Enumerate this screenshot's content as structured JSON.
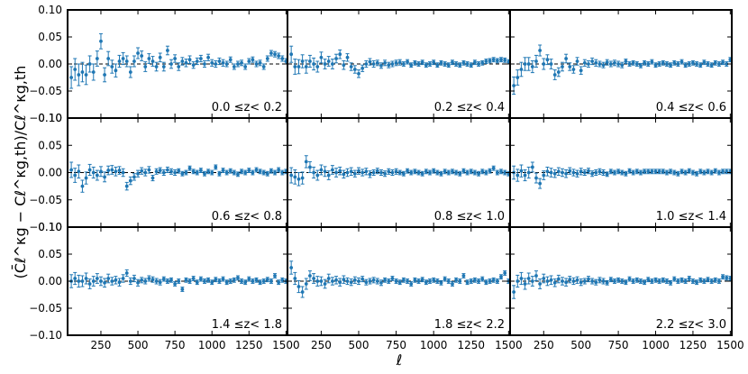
{
  "chart_data": {
    "type": "scatter",
    "xlabel": "ℓ",
    "ylabel": "(C̄ℓ^κg − Cℓ^κg,th)/Cℓ^κg,th",
    "xlim": [
      25,
      1510
    ],
    "ylim": [
      -0.1,
      0.1
    ],
    "x_ticks": [
      "250",
      "500",
      "750",
      "1000",
      "1250",
      "1500"
    ],
    "y_ticks": [
      "−0.10",
      "−0.05",
      "0.00",
      "0.05",
      "0.10"
    ],
    "reference_line": 0.0,
    "marker_color": "#1f77b4",
    "grid": false,
    "x": [
      50,
      75,
      100,
      125,
      150,
      175,
      200,
      225,
      250,
      275,
      300,
      325,
      350,
      375,
      400,
      425,
      450,
      475,
      500,
      525,
      550,
      575,
      600,
      625,
      650,
      675,
      700,
      725,
      750,
      775,
      800,
      825,
      850,
      875,
      900,
      925,
      950,
      975,
      1000,
      1025,
      1050,
      1075,
      1100,
      1125,
      1150,
      1175,
      1200,
      1225,
      1250,
      1275,
      1300,
      1325,
      1350,
      1375,
      1400,
      1425,
      1450,
      1475,
      1500
    ],
    "panels": [
      {
        "label": "0.0  ≤z<  0.2",
        "values": [
          -0.025,
          -0.01,
          -0.02,
          -0.015,
          -0.02,
          0.0,
          -0.015,
          0.01,
          0.042,
          -0.02,
          0.01,
          -0.005,
          -0.012,
          0.005,
          0.01,
          0.005,
          -0.015,
          0.005,
          0.02,
          0.015,
          -0.005,
          0.01,
          0.005,
          -0.005,
          0.012,
          -0.005,
          0.025,
          0.0,
          0.01,
          -0.005,
          0.005,
          0.002,
          0.008,
          -0.002,
          0.005,
          0.01,
          0.0,
          0.012,
          0.002,
          0.0,
          0.005,
          0.002,
          0.0,
          0.008,
          -0.005,
          0.0,
          0.002,
          -0.005,
          0.005,
          0.008,
          0.0,
          0.002,
          -0.005,
          0.01,
          0.02,
          0.018,
          0.015,
          0.01,
          0.005
        ],
        "errors": [
          0.02,
          0.02,
          0.02,
          0.018,
          0.018,
          0.015,
          0.015,
          0.014,
          0.014,
          0.013,
          0.013,
          0.012,
          0.012,
          0.011,
          0.011,
          0.01,
          0.01,
          0.01,
          0.01,
          0.009,
          0.009,
          0.009,
          0.009,
          0.008,
          0.008,
          0.008,
          0.008,
          0.008,
          0.007,
          0.007,
          0.007,
          0.007,
          0.007,
          0.006,
          0.006,
          0.006,
          0.006,
          0.006,
          0.006,
          0.006,
          0.006,
          0.006,
          0.005,
          0.005,
          0.005,
          0.005,
          0.005,
          0.005,
          0.005,
          0.005,
          0.005,
          0.005,
          0.005,
          0.005,
          0.005,
          0.005,
          0.005,
          0.005,
          0.005
        ]
      },
      {
        "label": "0.2  ≤z<  0.4",
        "values": [
          0.018,
          -0.005,
          -0.005,
          0.005,
          -0.005,
          0.005,
          0.0,
          -0.005,
          0.012,
          0.0,
          0.005,
          0.0,
          0.01,
          0.018,
          -0.002,
          0.012,
          -0.005,
          -0.01,
          -0.018,
          -0.008,
          0.0,
          0.004,
          0.0,
          0.002,
          -0.003,
          0.002,
          -0.002,
          0.0,
          0.002,
          0.003,
          0.0,
          0.004,
          -0.002,
          0.002,
          0.0,
          0.003,
          -0.002,
          0.0,
          0.003,
          -0.002,
          0.002,
          0.0,
          -0.002,
          0.003,
          0.0,
          -0.002,
          0.002,
          0.0,
          -0.002,
          0.003,
          0.0,
          0.002,
          0.005,
          0.006,
          0.008,
          0.006,
          0.008,
          0.007,
          0.004
        ],
        "errors": [
          0.015,
          0.014,
          0.013,
          0.012,
          0.012,
          0.011,
          0.011,
          0.01,
          0.01,
          0.009,
          0.009,
          0.009,
          0.008,
          0.008,
          0.008,
          0.007,
          0.007,
          0.007,
          0.007,
          0.006,
          0.006,
          0.006,
          0.006,
          0.005,
          0.005,
          0.005,
          0.005,
          0.005,
          0.005,
          0.005,
          0.004,
          0.004,
          0.004,
          0.004,
          0.004,
          0.004,
          0.004,
          0.004,
          0.004,
          0.004,
          0.004,
          0.004,
          0.004,
          0.004,
          0.004,
          0.004,
          0.004,
          0.004,
          0.004,
          0.004,
          0.004,
          0.004,
          0.004,
          0.004,
          0.004,
          0.004,
          0.004,
          0.004,
          0.004
        ]
      },
      {
        "label": "0.4  ≤z<  0.6",
        "values": [
          -0.04,
          -0.025,
          -0.01,
          0.0,
          0.0,
          -0.005,
          0.005,
          0.025,
          0.0,
          0.008,
          0.0,
          -0.02,
          -0.015,
          -0.005,
          0.01,
          -0.005,
          -0.01,
          0.005,
          -0.012,
          0.002,
          0.0,
          0.005,
          0.002,
          0.0,
          -0.002,
          0.003,
          0.0,
          0.002,
          0.0,
          -0.002,
          0.005,
          0.0,
          0.002,
          0.0,
          -0.003,
          0.002,
          0.0,
          0.004,
          -0.002,
          0.0,
          0.002,
          0.0,
          -0.002,
          0.002,
          0.0,
          0.004,
          -0.002,
          0.0,
          0.002,
          0.0,
          -0.002,
          0.003,
          0.0,
          -0.002,
          0.002,
          0.0,
          0.003,
          0.0,
          0.008
        ],
        "errors": [
          0.016,
          0.014,
          0.013,
          0.012,
          0.012,
          0.011,
          0.011,
          0.01,
          0.01,
          0.009,
          0.009,
          0.009,
          0.008,
          0.008,
          0.008,
          0.007,
          0.007,
          0.007,
          0.007,
          0.006,
          0.006,
          0.006,
          0.006,
          0.005,
          0.005,
          0.005,
          0.005,
          0.005,
          0.005,
          0.005,
          0.004,
          0.004,
          0.004,
          0.004,
          0.004,
          0.004,
          0.004,
          0.004,
          0.004,
          0.004,
          0.004,
          0.004,
          0.004,
          0.004,
          0.004,
          0.004,
          0.004,
          0.004,
          0.004,
          0.004,
          0.004,
          0.004,
          0.004,
          0.004,
          0.004,
          0.004,
          0.004,
          0.004,
          0.004
        ]
      },
      {
        "label": "0.6  ≤z<  0.8",
        "values": [
          0.005,
          -0.005,
          0.002,
          -0.025,
          -0.01,
          0.005,
          0.0,
          -0.005,
          0.002,
          -0.008,
          0.004,
          0.005,
          0.002,
          0.004,
          0.0,
          -0.025,
          -0.015,
          -0.008,
          -0.002,
          0.003,
          0.0,
          0.005,
          -0.01,
          0.002,
          0.004,
          0.0,
          0.005,
          0.002,
          0.0,
          0.003,
          -0.002,
          0.0,
          0.008,
          0.002,
          0.0,
          0.004,
          -0.002,
          0.002,
          0.0,
          0.01,
          -0.002,
          0.004,
          0.0,
          0.003,
          0.0,
          -0.003,
          0.002,
          0.0,
          0.004,
          0.0,
          0.005,
          0.002,
          0.0,
          -0.002,
          0.003,
          0.0,
          0.005,
          0.0,
          0.002
        ],
        "errors": [
          0.014,
          0.013,
          0.012,
          0.011,
          0.011,
          0.01,
          0.01,
          0.009,
          0.009,
          0.009,
          0.008,
          0.008,
          0.008,
          0.007,
          0.007,
          0.007,
          0.007,
          0.006,
          0.006,
          0.006,
          0.006,
          0.006,
          0.005,
          0.005,
          0.005,
          0.005,
          0.005,
          0.005,
          0.005,
          0.004,
          0.004,
          0.004,
          0.004,
          0.004,
          0.004,
          0.004,
          0.004,
          0.004,
          0.004,
          0.004,
          0.004,
          0.004,
          0.004,
          0.004,
          0.004,
          0.004,
          0.004,
          0.004,
          0.004,
          0.004,
          0.004,
          0.004,
          0.004,
          0.004,
          0.004,
          0.004,
          0.004,
          0.004,
          0.004
        ]
      },
      {
        "label": "0.8  ≤z<  1.0",
        "values": [
          -0.005,
          -0.008,
          -0.012,
          -0.01,
          0.02,
          0.01,
          0.0,
          -0.005,
          0.005,
          0.002,
          -0.005,
          0.005,
          0.0,
          0.003,
          -0.003,
          0.0,
          0.002,
          -0.002,
          0.003,
          0.0,
          0.002,
          -0.003,
          0.0,
          0.003,
          0.0,
          -0.002,
          0.002,
          0.0,
          0.002,
          0.0,
          -0.002,
          0.003,
          0.0,
          0.002,
          0.0,
          -0.002,
          0.002,
          0.0,
          0.003,
          0.0,
          -0.002,
          0.002,
          0.0,
          0.002,
          0.0,
          -0.002,
          0.003,
          0.0,
          0.002,
          0.0,
          -0.002,
          0.002,
          0.0,
          0.003,
          0.008,
          0.0,
          0.002,
          0.0,
          -0.002
        ],
        "errors": [
          0.014,
          0.013,
          0.012,
          0.011,
          0.011,
          0.01,
          0.01,
          0.009,
          0.009,
          0.009,
          0.008,
          0.008,
          0.008,
          0.007,
          0.007,
          0.007,
          0.007,
          0.006,
          0.006,
          0.006,
          0.006,
          0.006,
          0.005,
          0.005,
          0.005,
          0.005,
          0.005,
          0.005,
          0.005,
          0.004,
          0.004,
          0.004,
          0.004,
          0.004,
          0.004,
          0.004,
          0.004,
          0.004,
          0.004,
          0.004,
          0.004,
          0.004,
          0.004,
          0.004,
          0.004,
          0.004,
          0.004,
          0.004,
          0.004,
          0.004,
          0.004,
          0.004,
          0.004,
          0.004,
          0.004,
          0.004,
          0.004,
          0.004,
          0.004
        ]
      },
      {
        "label": "1.0  ≤z<  1.4",
        "values": [
          0.0,
          -0.005,
          0.003,
          -0.005,
          0.0,
          0.01,
          -0.01,
          -0.02,
          -0.005,
          0.002,
          0.0,
          -0.002,
          0.002,
          0.0,
          -0.002,
          0.003,
          0.0,
          -0.002,
          0.002,
          0.0,
          0.003,
          -0.002,
          0.0,
          0.002,
          0.0,
          -0.003,
          0.002,
          0.0,
          0.002,
          0.0,
          -0.002,
          0.003,
          0.0,
          0.002,
          0.0,
          0.002,
          0.002,
          0.002,
          0.002,
          0.002,
          0.002,
          0.0,
          0.002,
          0.0,
          -0.002,
          0.002,
          0.0,
          0.003,
          0.0,
          -0.002,
          0.002,
          0.0,
          0.002,
          0.0,
          0.003,
          0.0,
          0.002,
          0.002,
          0.002
        ],
        "errors": [
          0.012,
          0.011,
          0.011,
          0.01,
          0.01,
          0.009,
          0.009,
          0.009,
          0.008,
          0.008,
          0.008,
          0.007,
          0.007,
          0.007,
          0.007,
          0.006,
          0.006,
          0.006,
          0.006,
          0.005,
          0.005,
          0.005,
          0.005,
          0.005,
          0.005,
          0.004,
          0.004,
          0.004,
          0.004,
          0.004,
          0.004,
          0.004,
          0.004,
          0.004,
          0.004,
          0.004,
          0.004,
          0.004,
          0.004,
          0.004,
          0.004,
          0.004,
          0.004,
          0.004,
          0.004,
          0.004,
          0.004,
          0.004,
          0.004,
          0.004,
          0.004,
          0.004,
          0.004,
          0.004,
          0.004,
          0.004,
          0.004,
          0.004,
          0.004
        ]
      },
      {
        "label": "1.4  ≤z<  1.8",
        "values": [
          0.0,
          0.005,
          0.0,
          0.0,
          0.005,
          -0.005,
          0.0,
          0.005,
          0.0,
          -0.003,
          0.005,
          0.0,
          0.002,
          -0.002,
          0.005,
          0.015,
          0.0,
          0.005,
          -0.003,
          0.002,
          0.0,
          0.005,
          0.003,
          0.0,
          -0.002,
          0.004,
          0.0,
          0.002,
          -0.005,
          0.0,
          -0.015,
          0.002,
          0.0,
          0.005,
          -0.002,
          0.004,
          0.0,
          0.002,
          -0.002,
          0.003,
          0.0,
          0.004,
          -0.002,
          0.0,
          0.002,
          0.006,
          0.0,
          -0.002,
          0.004,
          0.0,
          0.002,
          -0.002,
          0.0,
          0.003,
          0.0,
          0.01,
          -0.002,
          0.002,
          0.0
        ],
        "errors": [
          0.012,
          0.011,
          0.011,
          0.01,
          0.01,
          0.009,
          0.009,
          0.009,
          0.008,
          0.008,
          0.008,
          0.007,
          0.007,
          0.007,
          0.007,
          0.006,
          0.006,
          0.006,
          0.006,
          0.005,
          0.005,
          0.005,
          0.005,
          0.005,
          0.005,
          0.004,
          0.004,
          0.004,
          0.004,
          0.004,
          0.004,
          0.004,
          0.004,
          0.004,
          0.004,
          0.004,
          0.004,
          0.004,
          0.004,
          0.004,
          0.004,
          0.004,
          0.004,
          0.004,
          0.004,
          0.004,
          0.004,
          0.004,
          0.004,
          0.004,
          0.004,
          0.004,
          0.004,
          0.004,
          0.004,
          0.004,
          0.004,
          0.004,
          0.004
        ]
      },
      {
        "label": "1.8  ≤z<  2.2",
        "values": [
          0.025,
          0.005,
          -0.01,
          -0.02,
          -0.005,
          0.01,
          0.005,
          0.0,
          0.0,
          -0.005,
          0.005,
          0.0,
          0.002,
          -0.002,
          0.003,
          0.0,
          -0.002,
          0.002,
          0.0,
          0.004,
          -0.002,
          0.0,
          0.002,
          0.0,
          -0.003,
          0.002,
          0.0,
          0.005,
          0.0,
          -0.002,
          0.002,
          0.0,
          -0.005,
          0.002,
          0.0,
          0.003,
          -0.002,
          0.0,
          0.002,
          0.0,
          -0.003,
          0.004,
          0.0,
          -0.005,
          0.002,
          0.0,
          0.01,
          -0.002,
          0.0,
          0.002,
          0.0,
          0.004,
          -0.002,
          0.0,
          0.002,
          0.0,
          0.008,
          0.015,
          0.0
        ],
        "errors": [
          0.012,
          0.011,
          0.011,
          0.01,
          0.01,
          0.009,
          0.009,
          0.009,
          0.008,
          0.008,
          0.008,
          0.007,
          0.007,
          0.007,
          0.007,
          0.006,
          0.006,
          0.006,
          0.006,
          0.005,
          0.005,
          0.005,
          0.005,
          0.005,
          0.005,
          0.004,
          0.004,
          0.004,
          0.004,
          0.004,
          0.004,
          0.004,
          0.004,
          0.004,
          0.004,
          0.004,
          0.004,
          0.004,
          0.004,
          0.004,
          0.004,
          0.004,
          0.004,
          0.004,
          0.004,
          0.004,
          0.004,
          0.004,
          0.004,
          0.004,
          0.004,
          0.004,
          0.004,
          0.004,
          0.004,
          0.004,
          0.004,
          0.004,
          0.004
        ]
      },
      {
        "label": "2.2  ≤z<  3.0",
        "values": [
          -0.02,
          0.0,
          0.005,
          -0.005,
          0.005,
          0.0,
          0.01,
          -0.005,
          0.005,
          0.0,
          0.002,
          -0.003,
          0.004,
          0.0,
          -0.002,
          0.003,
          0.0,
          0.002,
          -0.002,
          0.0,
          0.004,
          0.0,
          -0.002,
          0.002,
          0.0,
          -0.003,
          0.003,
          0.0,
          0.002,
          0.0,
          -0.002,
          0.004,
          0.0,
          0.002,
          0.0,
          -0.002,
          0.003,
          0.0,
          0.002,
          0.0,
          0.002,
          0.0,
          -0.003,
          0.004,
          0.0,
          0.002,
          0.0,
          0.005,
          0.0,
          -0.002,
          0.002,
          0.0,
          0.003,
          0.0,
          0.002,
          0.0,
          0.008,
          0.006,
          0.005
        ],
        "errors": [
          0.012,
          0.011,
          0.011,
          0.01,
          0.01,
          0.009,
          0.009,
          0.009,
          0.008,
          0.008,
          0.008,
          0.007,
          0.007,
          0.007,
          0.007,
          0.006,
          0.006,
          0.006,
          0.006,
          0.005,
          0.005,
          0.005,
          0.005,
          0.005,
          0.005,
          0.004,
          0.004,
          0.004,
          0.004,
          0.004,
          0.004,
          0.004,
          0.004,
          0.004,
          0.004,
          0.004,
          0.004,
          0.004,
          0.004,
          0.004,
          0.004,
          0.004,
          0.004,
          0.004,
          0.004,
          0.004,
          0.004,
          0.004,
          0.004,
          0.004,
          0.004,
          0.004,
          0.004,
          0.004,
          0.004,
          0.004,
          0.004,
          0.004,
          0.004
        ]
      }
    ]
  }
}
